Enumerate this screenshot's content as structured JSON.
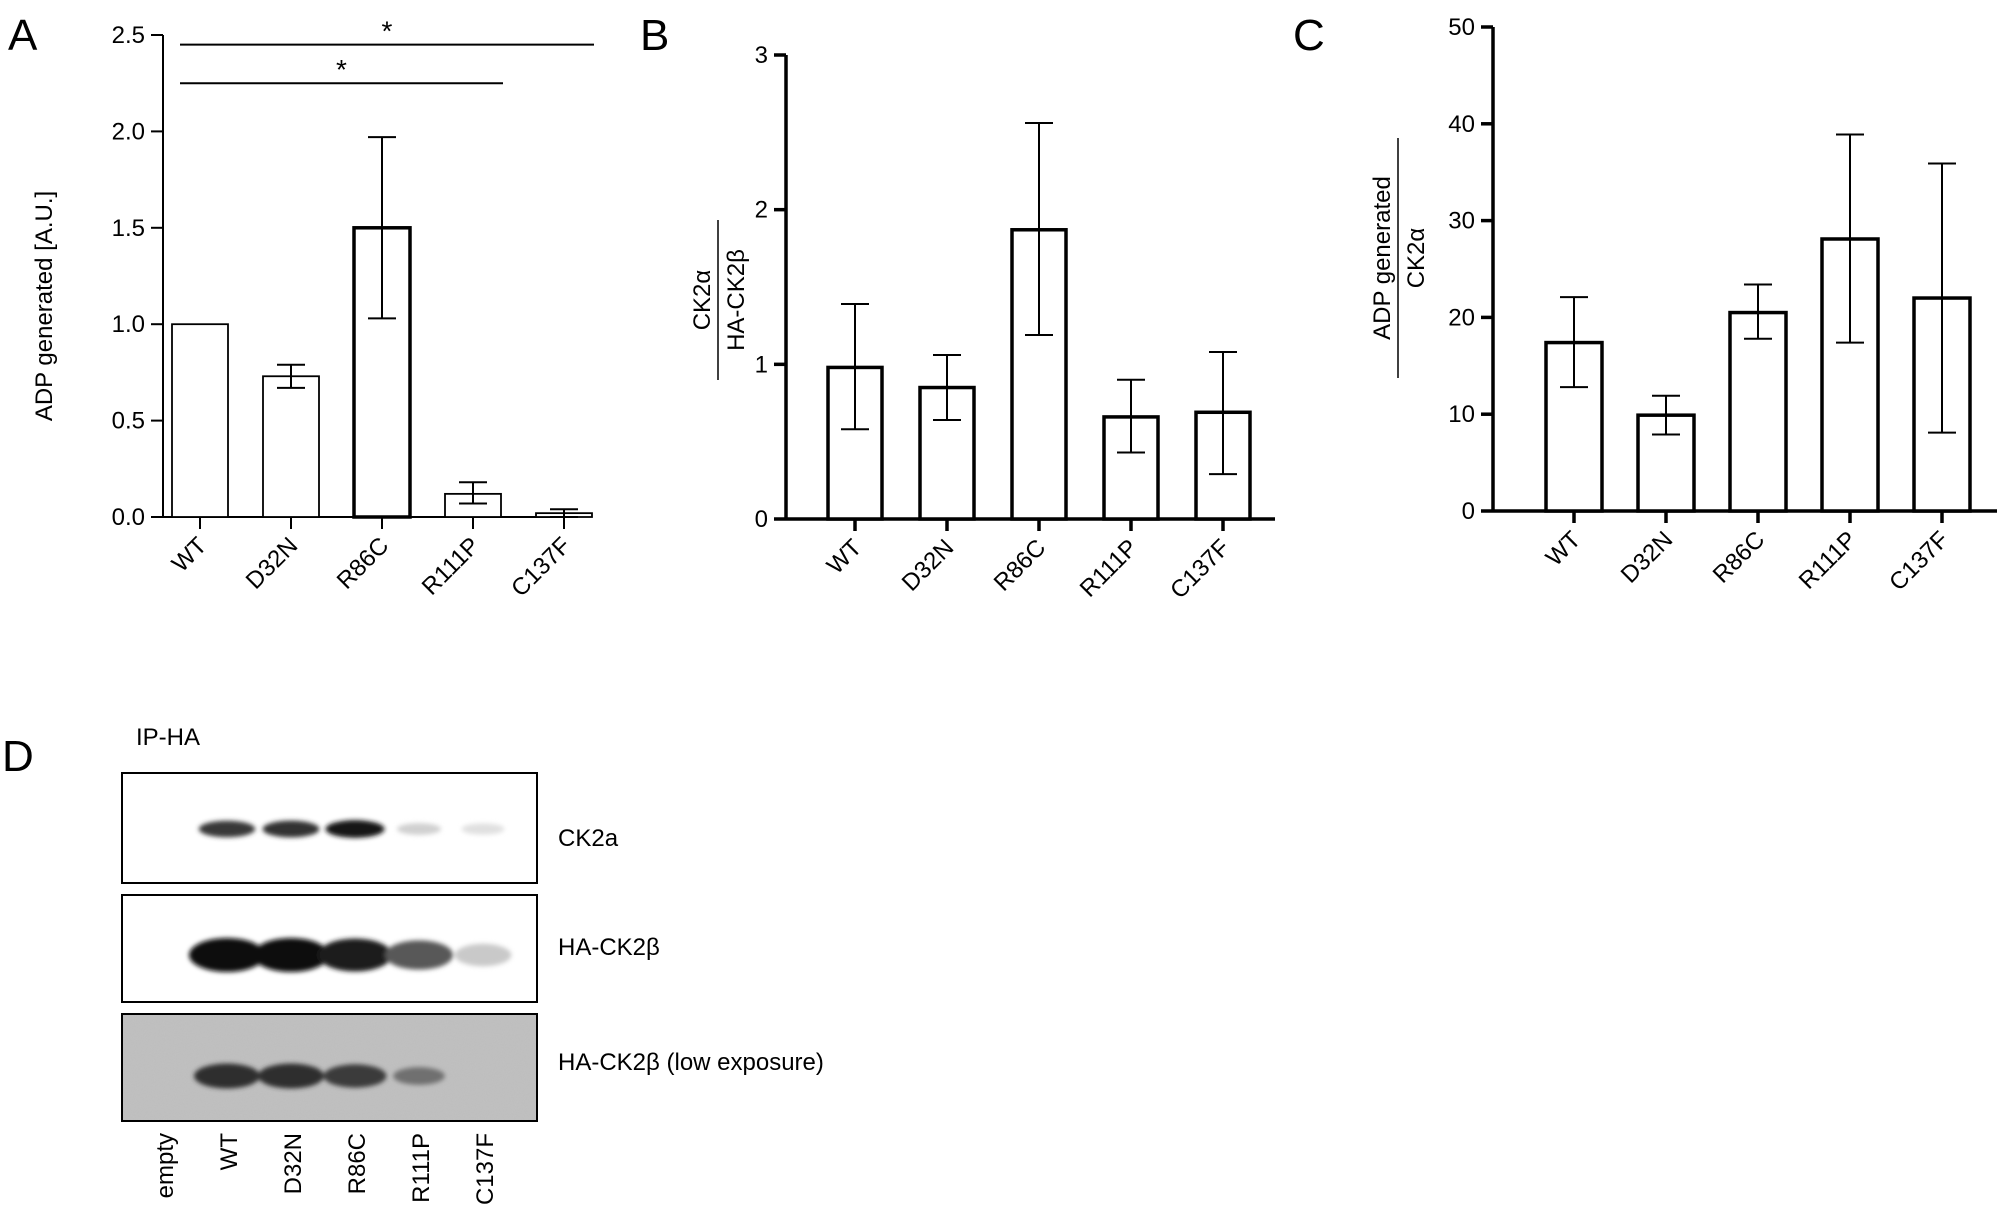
{
  "chart_data": [
    {
      "panel": "A",
      "type": "bar",
      "categories": [
        "WT",
        "D32N",
        "R86C",
        "R111P",
        "C137F"
      ],
      "values": [
        1.0,
        0.73,
        1.5,
        0.12,
        0.02
      ],
      "error_low": [
        1.0,
        0.67,
        1.03,
        0.07,
        0.0
      ],
      "error_high": [
        1.0,
        0.79,
        1.97,
        0.18,
        0.04
      ],
      "bar_style": [
        "thin",
        "thin",
        "thick",
        "thin",
        "thin"
      ],
      "ylabel": "ADP generated [A.U.]",
      "ylim": [
        0,
        2.5
      ],
      "yticks": [
        "0.0",
        "0.5",
        "1.0",
        "1.5",
        "2.0",
        "2.5"
      ],
      "ytick_values": [
        0,
        0.5,
        1.0,
        1.5,
        2.0,
        2.5
      ],
      "significance": [
        {
          "from": 0,
          "to": 4,
          "y": 2.45,
          "label": "*"
        },
        {
          "from": 0,
          "to": 3,
          "y": 2.25,
          "label": "*"
        }
      ]
    },
    {
      "panel": "B",
      "type": "bar",
      "categories": [
        "WT",
        "D32N",
        "R86C",
        "R111P",
        "C137F"
      ],
      "values": [
        0.98,
        0.85,
        1.87,
        0.66,
        0.69
      ],
      "error_low": [
        0.58,
        0.64,
        1.19,
        0.43,
        0.29
      ],
      "error_high": [
        1.39,
        1.06,
        2.56,
        0.9,
        1.08
      ],
      "ylabel_top": "CK2α",
      "ylabel_bottom": "HA-CK2β",
      "ylim": [
        0,
        3
      ],
      "yticks": [
        "0",
        "1",
        "2",
        "3"
      ],
      "ytick_values": [
        0,
        1,
        2,
        3
      ]
    },
    {
      "panel": "C",
      "type": "bar",
      "categories": [
        "WT",
        "D32N",
        "R86C",
        "R111P",
        "C137F"
      ],
      "values": [
        17.4,
        9.9,
        20.5,
        28.1,
        22.0
      ],
      "error_low": [
        12.8,
        7.9,
        17.8,
        17.4,
        8.1
      ],
      "error_high": [
        22.1,
        11.9,
        23.4,
        38.9,
        35.9
      ],
      "ylabel_top": "ADP generated",
      "ylabel_bottom": "CK2α",
      "ylim": [
        0,
        50
      ],
      "yticks": [
        "0",
        "10",
        "20",
        "30",
        "40",
        "50"
      ],
      "ytick_values": [
        0,
        10,
        20,
        30,
        40,
        50
      ]
    }
  ],
  "panels": {
    "A": {
      "letter": "A"
    },
    "B": {
      "letter": "B"
    },
    "C": {
      "letter": "C"
    },
    "D": {
      "letter": "D",
      "title": "IP-HA",
      "blot_labels": [
        "CK2a",
        "HA-CK2β",
        "HA-CK2β (low exposure)"
      ],
      "lanes": [
        "empty",
        "WT",
        "D32N",
        "R86C",
        "R111P",
        "C137F"
      ],
      "band_intensity": {
        "CK2a": [
          0.0,
          0.8,
          0.82,
          0.95,
          0.12,
          0.05
        ],
        "HA-CK2β": [
          0.0,
          1.0,
          1.0,
          0.92,
          0.65,
          0.15
        ],
        "HA-CK2β (low exposure)": [
          0.0,
          0.9,
          0.9,
          0.75,
          0.2,
          0.0
        ]
      }
    }
  }
}
